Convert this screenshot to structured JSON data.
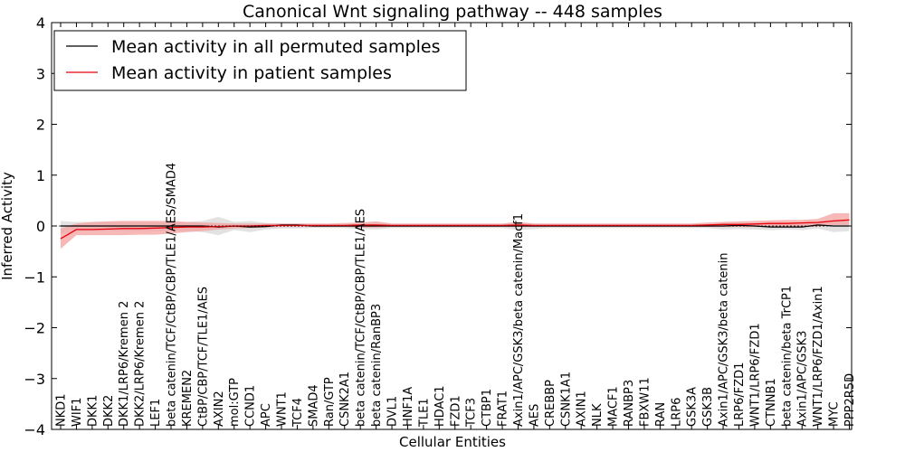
{
  "chart_data": {
    "type": "line",
    "title": "Canonical Wnt signaling pathway -- 448 samples",
    "xlabel": "Cellular Entities",
    "ylabel": "Inferred Activity",
    "ylim": [
      -4,
      4
    ],
    "yticks": [
      -4,
      -3,
      -2,
      -1,
      0,
      1,
      2,
      3,
      4
    ],
    "ytick_labels": [
      "−4",
      "−3",
      "−2",
      "−1",
      "0",
      "1",
      "2",
      "3",
      "4"
    ],
    "legend_position": "top-left",
    "categories": [
      "NKD1",
      "WIF1",
      "DKK1",
      "DKK2",
      "DKK1/LRP6/Kremen 2",
      "DKK2/LRP6/Kremen 2",
      "LEF1",
      "beta catenin/TCF/CtBP/CBP/TLE1/AES/SMAD4",
      "KREMEN2",
      "CtBP/CBP/TCF/TLE1/AES",
      "AXIN2",
      "mol:GTP",
      "CCND1",
      "APC",
      "WNT1",
      "TCF4",
      "SMAD4",
      "Ran/GTP",
      "CSNK2A1",
      "beta catenin/TCF/CtBP/CBP/TLE1/AES",
      "beta catenin/RanBP3",
      "DVL1",
      "HNF1A",
      "TLE1",
      "HDAC1",
      "FZD1",
      "TCF3",
      "CTBP1",
      "FRAT1",
      "Axin1/APC/GSK3/beta catenin/Macf1",
      "AES",
      "CREBBP",
      "CSNK1A1",
      "AXIN1",
      "NLK",
      "MACF1",
      "RANBP3",
      "FBXW11",
      "RAN",
      "LRP6",
      "GSK3A",
      "GSK3B",
      "Axin1/APC/GSK3/beta catenin",
      "LRP6/FZD1",
      "WNT1/LRP6/FZD1",
      "CTNNB1",
      "beta catenin/beta TrCP1",
      "Axin1/APC/GSK3",
      "WNT1/LRP6/FZD1/Axin1",
      "MYC",
      "PPP2R5D"
    ],
    "series": [
      {
        "name": "Mean activity in all permuted samples",
        "color": "#000000",
        "band_color": "#bfbfbf",
        "values": [
          0,
          0,
          0,
          0,
          0,
          0,
          0,
          0,
          0,
          0,
          -0.02,
          0,
          -0.02,
          -0.01,
          0.02,
          0.02,
          0,
          0,
          0,
          0,
          0,
          0,
          0,
          0,
          0,
          0,
          0,
          0,
          0,
          0,
          0,
          0,
          0,
          0,
          0,
          0,
          0,
          0,
          0,
          0,
          0,
          0,
          0,
          0.01,
          0,
          -0.02,
          -0.02,
          -0.02,
          0.02,
          0,
          0
        ],
        "band_lower": [
          -0.15,
          -0.1,
          -0.1,
          -0.1,
          -0.1,
          -0.1,
          -0.1,
          -0.1,
          -0.1,
          -0.12,
          -0.18,
          -0.08,
          -0.12,
          -0.07,
          -0.05,
          -0.05,
          -0.04,
          -0.04,
          -0.04,
          -0.06,
          -0.07,
          -0.04,
          -0.04,
          -0.04,
          -0.04,
          -0.04,
          -0.04,
          -0.04,
          -0.04,
          -0.08,
          -0.06,
          -0.04,
          -0.04,
          -0.04,
          -0.04,
          -0.04,
          -0.04,
          -0.04,
          -0.04,
          -0.04,
          -0.04,
          -0.04,
          -0.07,
          -0.06,
          -0.07,
          -0.08,
          -0.07,
          -0.08,
          -0.05,
          -0.12,
          -0.1
        ],
        "band_upper": [
          0.1,
          0.08,
          0.08,
          0.08,
          0.08,
          0.08,
          0.08,
          0.07,
          0.08,
          0.1,
          0.18,
          0.08,
          0.1,
          0.06,
          0.05,
          0.05,
          0.04,
          0.04,
          0.04,
          0.06,
          0.07,
          0.04,
          0.04,
          0.04,
          0.04,
          0.04,
          0.04,
          0.04,
          0.04,
          0.08,
          0.05,
          0.04,
          0.04,
          0.04,
          0.04,
          0.04,
          0.04,
          0.04,
          0.04,
          0.04,
          0.04,
          0.04,
          0.07,
          0.06,
          0.06,
          0.06,
          0.06,
          0.06,
          0.09,
          0.12,
          0.1
        ]
      },
      {
        "name": "Mean activity in patient samples",
        "color": "#e8000b",
        "band_color": "#f4a0a0",
        "values": [
          -0.25,
          -0.07,
          -0.07,
          -0.06,
          -0.05,
          -0.05,
          -0.04,
          -0.03,
          -0.02,
          -0.02,
          -0.01,
          0,
          0,
          0.01,
          0.01,
          0.01,
          0.01,
          0.01,
          0.01,
          0.02,
          0.02,
          0.01,
          0.01,
          0.01,
          0.01,
          0.01,
          0.01,
          0.01,
          0.01,
          0.02,
          0.01,
          0.01,
          0.01,
          0.01,
          0.01,
          0.01,
          0.01,
          0.01,
          0.01,
          0.01,
          0.01,
          0.02,
          0.03,
          0.03,
          0.04,
          0.05,
          0.05,
          0.06,
          0.07,
          0.1,
          0.12
        ],
        "band_lower": [
          -0.45,
          -0.18,
          -0.18,
          -0.18,
          -0.18,
          -0.17,
          -0.17,
          -0.15,
          -0.12,
          -0.1,
          -0.07,
          -0.05,
          -0.04,
          -0.03,
          -0.02,
          -0.02,
          -0.02,
          -0.02,
          -0.02,
          -0.03,
          -0.03,
          -0.02,
          -0.02,
          -0.02,
          -0.02,
          -0.02,
          -0.02,
          -0.02,
          -0.02,
          -0.02,
          -0.02,
          -0.02,
          -0.02,
          -0.02,
          -0.02,
          -0.02,
          -0.02,
          -0.02,
          -0.02,
          -0.02,
          -0.02,
          -0.02,
          -0.02,
          -0.02,
          -0.02,
          -0.02,
          -0.02,
          -0.02,
          -0.01,
          0.02,
          0.02
        ],
        "band_upper": [
          -0.05,
          0.05,
          0.08,
          0.09,
          0.1,
          0.1,
          0.1,
          0.1,
          0.08,
          0.07,
          0.06,
          0.05,
          0.05,
          0.05,
          0.05,
          0.05,
          0.05,
          0.05,
          0.06,
          0.07,
          0.09,
          0.05,
          0.05,
          0.05,
          0.05,
          0.05,
          0.05,
          0.05,
          0.05,
          0.08,
          0.05,
          0.05,
          0.05,
          0.05,
          0.05,
          0.05,
          0.05,
          0.05,
          0.05,
          0.05,
          0.05,
          0.07,
          0.08,
          0.09,
          0.1,
          0.11,
          0.12,
          0.12,
          0.14,
          0.25,
          0.25
        ]
      }
    ]
  }
}
